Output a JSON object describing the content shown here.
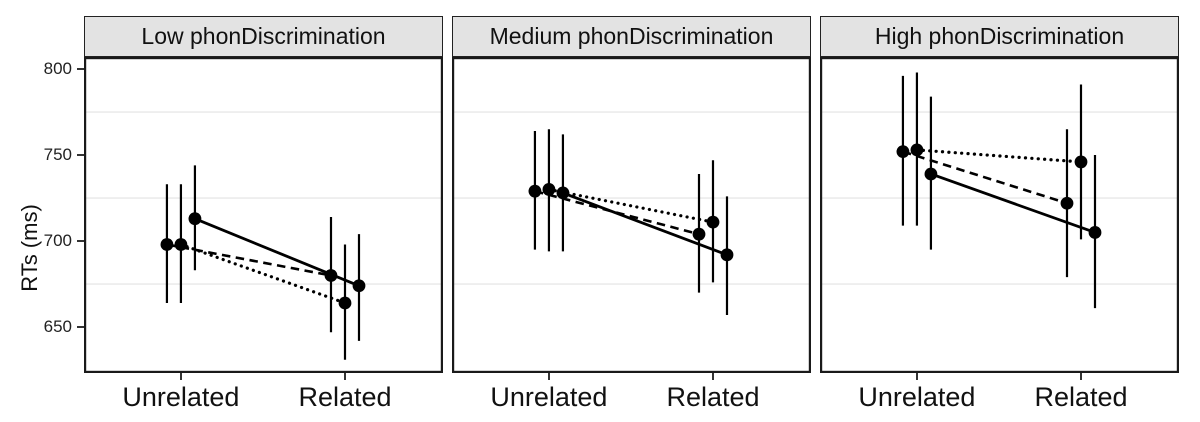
{
  "chart_data": {
    "type": "line",
    "title": "",
    "xlabel": "",
    "ylabel": "RTs (ms)",
    "x_categories": [
      "Unrelated",
      "Related"
    ],
    "y_ticks": [
      650,
      700,
      750,
      800
    ],
    "ylim": [
      623.3,
      807
    ],
    "minor_gridlines": [
      675,
      725,
      775
    ],
    "grid": "minor-only",
    "legend": "none",
    "colors": {
      "foreground": "#000000",
      "strip_fill": "#e3e3e3",
      "panel_border": "#1a1a1a",
      "gridline": "#e8e8e8",
      "panel_bg": "#ffffff"
    },
    "facets": [
      {
        "label": "Low phonDiscrimination",
        "series": [
          {
            "name": "condition-dashed",
            "linestyle": "dashed",
            "points": [
              {
                "x": "Unrelated",
                "y": 698,
                "ci": [
                  664,
                  733
                ]
              },
              {
                "x": "Related",
                "y": 680,
                "ci": [
                  647,
                  714
                ]
              }
            ]
          },
          {
            "name": "condition-dotted",
            "linestyle": "dotted",
            "points": [
              {
                "x": "Unrelated",
                "y": 698,
                "ci": [
                  664,
                  733
                ]
              },
              {
                "x": "Related",
                "y": 664,
                "ci": [
                  631,
                  698
                ]
              }
            ]
          },
          {
            "name": "condition-solid",
            "linestyle": "solid",
            "points": [
              {
                "x": "Unrelated",
                "y": 713,
                "ci": [
                  683,
                  744
                ]
              },
              {
                "x": "Related",
                "y": 674,
                "ci": [
                  642,
                  704
                ]
              }
            ]
          }
        ]
      },
      {
        "label": "Medium phonDiscrimination",
        "series": [
          {
            "name": "condition-dashed",
            "linestyle": "dashed",
            "points": [
              {
                "x": "Unrelated",
                "y": 729,
                "ci": [
                  695,
                  764
                ]
              },
              {
                "x": "Related",
                "y": 704,
                "ci": [
                  670,
                  739
                ]
              }
            ]
          },
          {
            "name": "condition-dotted",
            "linestyle": "dotted",
            "points": [
              {
                "x": "Unrelated",
                "y": 730,
                "ci": [
                  694,
                  765
                ]
              },
              {
                "x": "Related",
                "y": 711,
                "ci": [
                  676,
                  747
                ]
              }
            ]
          },
          {
            "name": "condition-solid",
            "linestyle": "solid",
            "points": [
              {
                "x": "Unrelated",
                "y": 728,
                "ci": [
                  694,
                  762
                ]
              },
              {
                "x": "Related",
                "y": 692,
                "ci": [
                  657,
                  726
                ]
              }
            ]
          }
        ]
      },
      {
        "label": "High phonDiscrimination",
        "series": [
          {
            "name": "condition-dashed",
            "linestyle": "dashed",
            "points": [
              {
                "x": "Unrelated",
                "y": 752,
                "ci": [
                  709,
                  796
                ]
              },
              {
                "x": "Related",
                "y": 722,
                "ci": [
                  679,
                  765
                ]
              }
            ]
          },
          {
            "name": "condition-dotted",
            "linestyle": "dotted",
            "points": [
              {
                "x": "Unrelated",
                "y": 753,
                "ci": [
                  709,
                  798
                ]
              },
              {
                "x": "Related",
                "y": 746,
                "ci": [
                  701,
                  791
                ]
              }
            ]
          },
          {
            "name": "condition-solid",
            "linestyle": "solid",
            "points": [
              {
                "x": "Unrelated",
                "y": 739,
                "ci": [
                  695,
                  784
                ]
              },
              {
                "x": "Related",
                "y": 705,
                "ci": [
                  661,
                  750
                ]
              }
            ]
          }
        ]
      }
    ]
  }
}
